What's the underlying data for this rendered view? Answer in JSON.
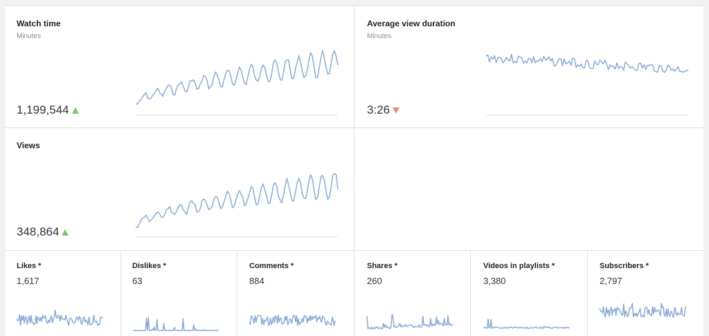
{
  "colors": {
    "line": "#8aaad8",
    "up": "#7dc36e",
    "down": "#f08080"
  },
  "watch_time": {
    "title": "Watch time",
    "subtitle": "Minutes",
    "value": "1,199,544",
    "trend": "up"
  },
  "avg_view_duration": {
    "title": "Average view duration",
    "subtitle": "Minutes",
    "value": "3:26",
    "trend": "down"
  },
  "views": {
    "title": "Views",
    "value": "348,864",
    "trend": "up"
  },
  "metrics": [
    {
      "title": "Likes *",
      "value": "1,617"
    },
    {
      "title": "Dislikes *",
      "value": "63"
    },
    {
      "title": "Comments *",
      "value": "884"
    },
    {
      "title": "Shares *",
      "value": "260"
    },
    {
      "title": "Videos in playlists *",
      "value": "3,380"
    },
    {
      "title": "Subscribers *",
      "value": "2,797"
    }
  ]
}
